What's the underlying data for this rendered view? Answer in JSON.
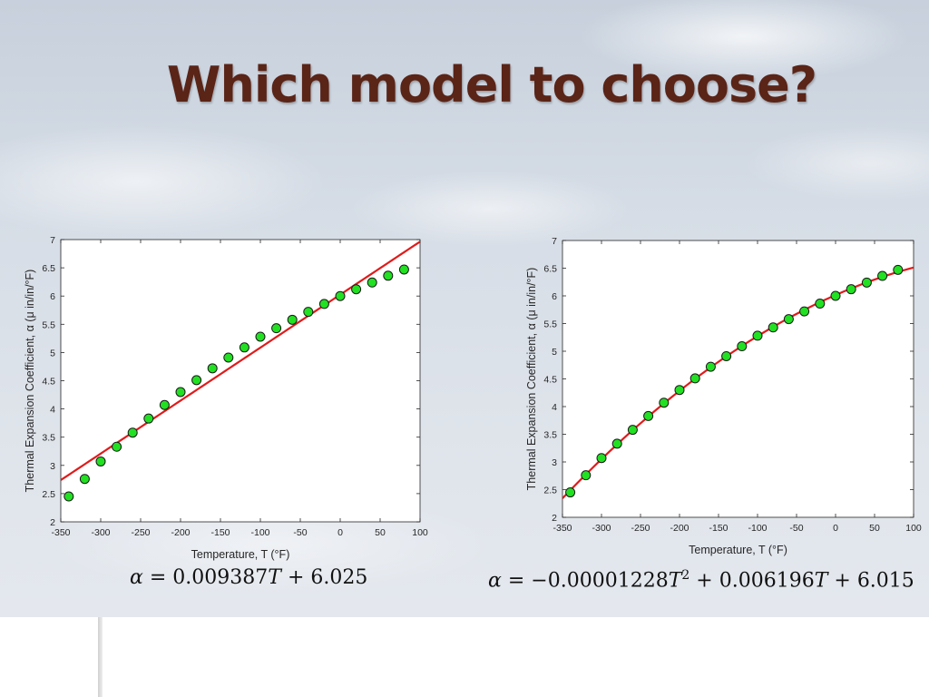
{
  "slide": {
    "title": "Which model to choose?"
  },
  "colors": {
    "title": "#5a2417",
    "fit_line": "#e01b1b",
    "data_point": "#22e022"
  },
  "equations": {
    "left": {
      "lhs": "α",
      "eq": " = ",
      "coef": "0.009387",
      "var": "T",
      "plus": " + ",
      "const": "6.025"
    },
    "right": {
      "lhs": "α",
      "eq": " = −",
      "coef2": "0.00001228",
      "var2": "T",
      "pow": "2",
      "plus1": " + ",
      "coef1": "0.006196",
      "var1": "T",
      "plus2": " + ",
      "const": "6.015"
    }
  },
  "chart_data": [
    {
      "type": "scatter",
      "title": "",
      "xlabel": "Temperature, T (°F)",
      "ylabel": "Thermal Expansion Coefficient, α (μ in/in/°F)",
      "xlim": [
        -350,
        100
      ],
      "ylim": [
        2,
        7
      ],
      "xticks": [
        "-350",
        "-300",
        "-250",
        "-200",
        "-150",
        "-100",
        "-50",
        "0",
        "50",
        "100"
      ],
      "yticks": [
        "2",
        "2.5",
        "3",
        "3.5",
        "4",
        "4.5",
        "5",
        "5.5",
        "6",
        "6.5",
        "7"
      ],
      "grid": false,
      "series": [
        {
          "kind": "points",
          "x": [
            -340,
            -320,
            -300,
            -280,
            -260,
            -240,
            -220,
            -200,
            -180,
            -160,
            -140,
            -120,
            -100,
            -80,
            -60,
            -40,
            -20,
            0,
            20,
            40,
            60,
            80
          ],
          "y": [
            2.45,
            2.76,
            3.07,
            3.33,
            3.58,
            3.83,
            4.07,
            4.3,
            4.51,
            4.72,
            4.91,
            5.09,
            5.28,
            5.43,
            5.58,
            5.72,
            5.86,
            6.0,
            6.12,
            6.24,
            6.36,
            6.47
          ]
        },
        {
          "kind": "fit",
          "model": "linear",
          "coefficients": [
            0.009387,
            6.025
          ]
        }
      ]
    },
    {
      "type": "scatter",
      "title": "",
      "xlabel": "Temperature, T (°F)",
      "ylabel": "Thermal Expansion Coefficient, α (μ in/in/°F)",
      "xlim": [
        -350,
        100
      ],
      "ylim": [
        2,
        7
      ],
      "xticks": [
        "-350",
        "-300",
        "-250",
        "-200",
        "-150",
        "-100",
        "-50",
        "0",
        "50",
        "100"
      ],
      "yticks": [
        "2",
        "2.5",
        "3",
        "3.5",
        "4",
        "4.5",
        "5",
        "5.5",
        "6",
        "6.5",
        "7"
      ],
      "grid": false,
      "series": [
        {
          "kind": "points",
          "x": [
            -340,
            -320,
            -300,
            -280,
            -260,
            -240,
            -220,
            -200,
            -180,
            -160,
            -140,
            -120,
            -100,
            -80,
            -60,
            -40,
            -20,
            0,
            20,
            40,
            60,
            80
          ],
          "y": [
            2.45,
            2.76,
            3.07,
            3.33,
            3.58,
            3.83,
            4.07,
            4.3,
            4.51,
            4.72,
            4.91,
            5.09,
            5.28,
            5.43,
            5.58,
            5.72,
            5.86,
            6.0,
            6.12,
            6.24,
            6.36,
            6.47
          ]
        },
        {
          "kind": "fit",
          "model": "quadratic",
          "coefficients": [
            -1.228e-05,
            0.006196,
            6.015
          ]
        }
      ]
    }
  ]
}
